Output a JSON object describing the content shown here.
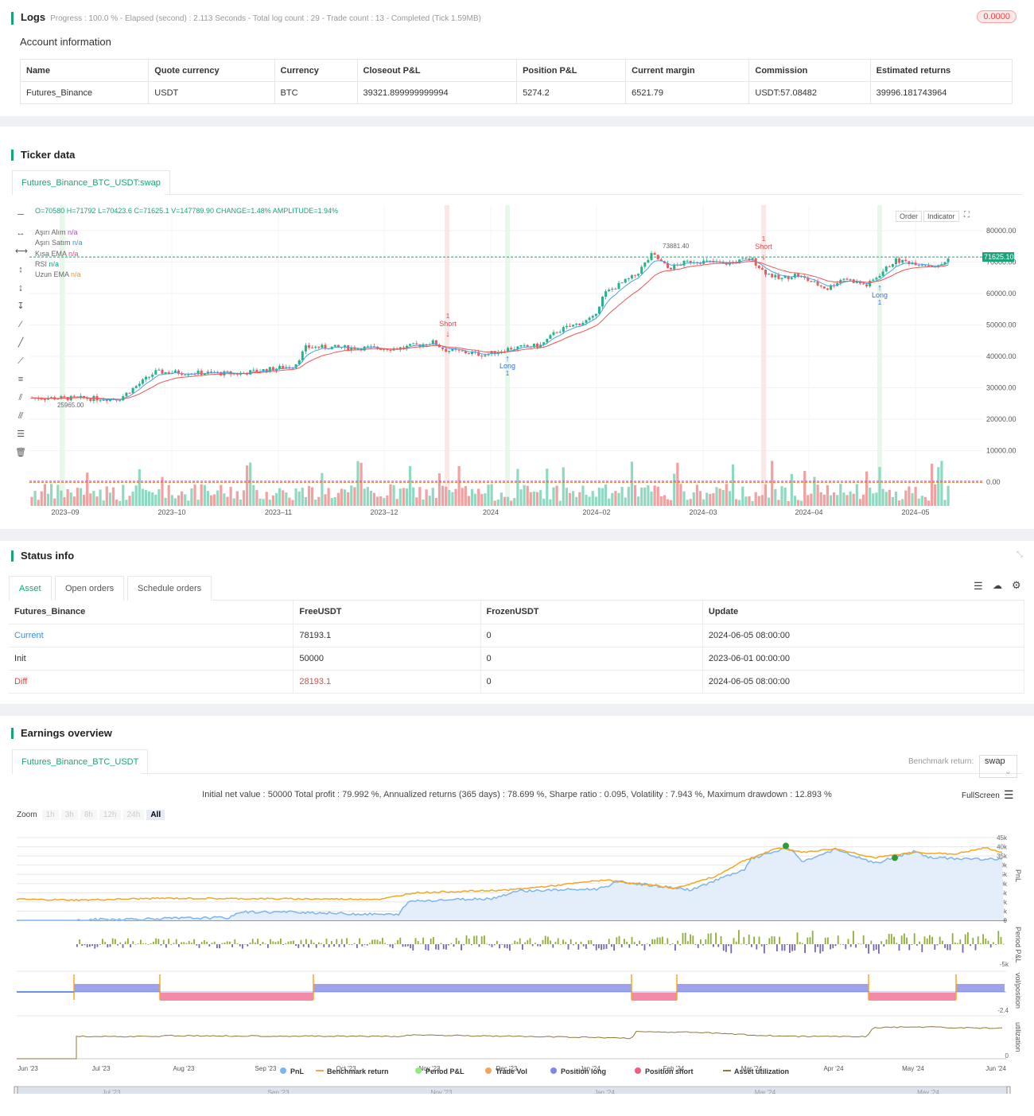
{
  "logs": {
    "title": "Logs",
    "meta": "Progress : 100.0 % - Elapsed (second) : 2.113 Seconds - Total log count : 29 - Trade count : 13 - Completed (Tick 1.59MB)",
    "badge": "0.0000"
  },
  "account": {
    "title": "Account information",
    "headers": [
      "Name",
      "Quote currency",
      "Currency",
      "Closeout P&L",
      "Position P&L",
      "Current margin",
      "Commission",
      "Estimated returns"
    ],
    "row": [
      "Futures_Binance",
      "USDT",
      "BTC",
      "39321.899999999994",
      "5274.2",
      "6521.79",
      "USDT:57.08482",
      "39996.181743964"
    ]
  },
  "ticker": {
    "title": "Ticker data",
    "tab": "Futures_Binance_BTC_USDT:swap",
    "ohlc": "O=70580 H=71792 L=70423.6 C=71625.1 V=147789.90 CHANGE=1.48% AMPLITUDE=1.94%",
    "legend": [
      {
        "name": "Aşırı Alım",
        "value": "n/a",
        "color": "#9b59b6"
      },
      {
        "name": "Aşırı Satım",
        "value": "n/a",
        "color": "#3498db"
      },
      {
        "name": "Kısa EMA",
        "value": "n/a",
        "color": "#e84393"
      },
      {
        "name": "RSI",
        "value": "n/a",
        "color": "#16a085"
      },
      {
        "name": "Uzun EMA",
        "value": "n/a",
        "color": "#f39c12"
      }
    ],
    "buttons": {
      "order": "Order",
      "indicator": "Indicator"
    },
    "price_label": "71625.10",
    "high_label": "73881.40",
    "low_label": "25965.00",
    "y_ticks": [
      "80000.00",
      "70000.00",
      "60000.00",
      "50000.00",
      "40000.00",
      "30000.00",
      "20000.00",
      "10000.00",
      "0.00"
    ],
    "x_ticks": [
      "2023–09",
      "2023–10",
      "2023–11",
      "2023–12",
      "2024",
      "2024–02",
      "2024–03",
      "2024–04",
      "2024–05"
    ],
    "signals": [
      {
        "label": "Short",
        "count": "1"
      },
      {
        "label": "Long",
        "count": "1"
      },
      {
        "label": "Short",
        "count": "1"
      },
      {
        "label": "Long",
        "count": "1"
      }
    ]
  },
  "status": {
    "title": "Status info",
    "tabs": [
      "Asset",
      "Open orders",
      "Schedule orders"
    ],
    "headers": [
      "Futures_Binance",
      "FreeUSDT",
      "FrozenUSDT",
      "Update"
    ],
    "rows": [
      [
        "Current",
        "78193.1",
        "0",
        "2024-06-05 08:00:00"
      ],
      [
        "Init",
        "50000",
        "0",
        "2023-06-01 00:00:00"
      ],
      [
        "Diff",
        "28193.1",
        "0",
        "2024-06-05 08:00:00"
      ]
    ]
  },
  "earnings": {
    "title": "Earnings overview",
    "tab": "Futures_Binance_BTC_USDT",
    "benchmark_label": "Benchmark return:",
    "benchmark_value": "swap",
    "summary": "Initial net value : 50000 Total profit : 79.992 %, Annualized returns (365 days) : 78.699 %, Sharpe ratio : 0.095, Volatility : 7.943 %, Maximum drawdown : 12.893 %",
    "fullscreen": "FullScreen",
    "zoom_label": "Zoom",
    "zoom_options": [
      "1h",
      "3h",
      "8h",
      "12h",
      "24h",
      "All"
    ],
    "pnl_ticks": [
      "45k",
      "40k",
      "35k",
      "30k",
      "25k",
      "20k",
      "15k",
      "10k",
      "5k",
      "0"
    ],
    "axis_titles": [
      "PnL",
      "Period P&L",
      "vol/position",
      "utilization"
    ],
    "period_tick": "-5k",
    "vol_tick": "-2.4",
    "util_tick": "0",
    "x_ticks": [
      "Jun '23",
      "Jul '23",
      "Aug '23",
      "Sep '23",
      "Oct '23",
      "Nov '23",
      "Dec '23",
      "Jan '24",
      "Feb '24",
      "Mar '24",
      "Apr '24",
      "May '24",
      "Jun '24"
    ],
    "nav_ticks": [
      "Jul '23",
      "Sep '23",
      "Nov '23",
      "Jan '24",
      "Mar '24",
      "May '24"
    ],
    "legend": [
      {
        "name": "PnL",
        "color": "#7cb5ec"
      },
      {
        "name": "Benchmark return",
        "color": "#f7a35c"
      },
      {
        "name": "Period P&L",
        "color": "#90ed7d"
      },
      {
        "name": "Trade Vol",
        "color": "#f7a35c"
      },
      {
        "name": "Position long",
        "color": "#8085e9"
      },
      {
        "name": "Position short",
        "color": "#f15c80"
      },
      {
        "name": "Asset utilization",
        "color": "#8d7a3a"
      }
    ]
  }
}
